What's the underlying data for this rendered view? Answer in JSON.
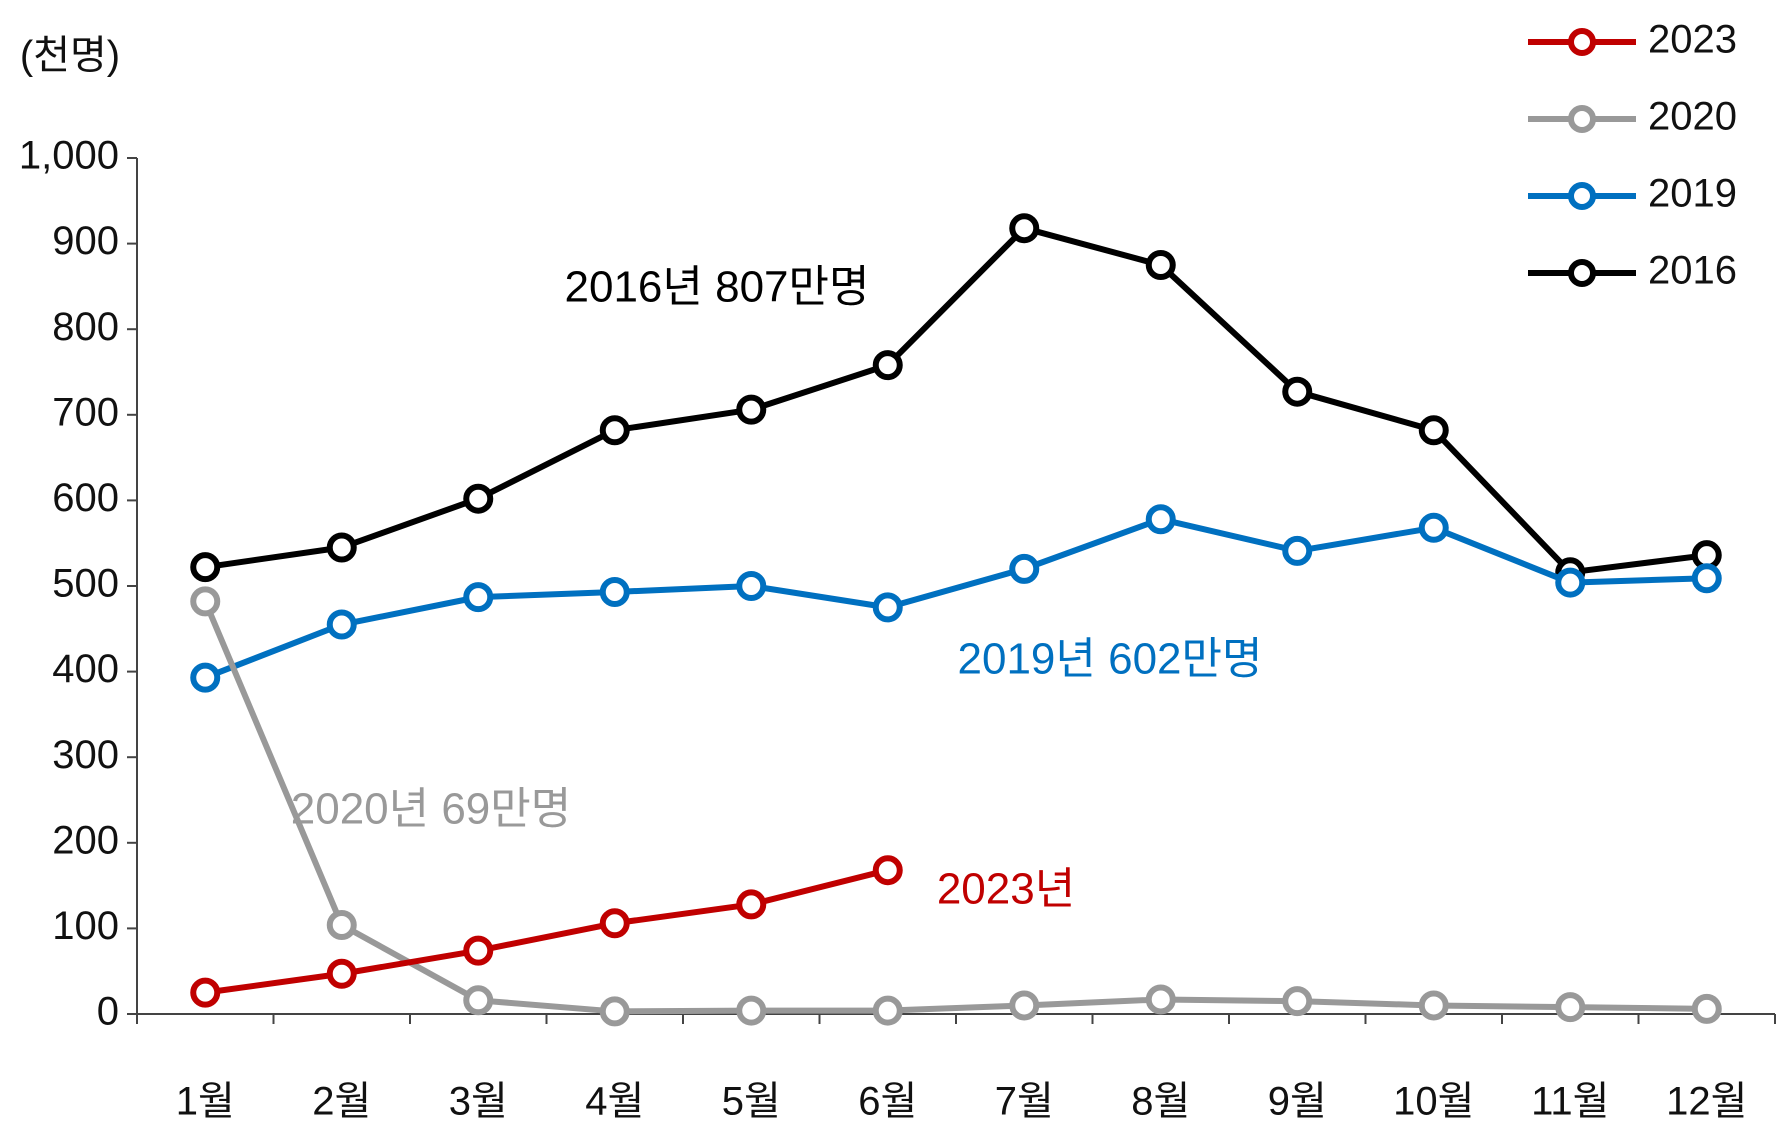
{
  "chart_data": {
    "type": "line",
    "y_label": "(천명)",
    "categories": [
      "1월",
      "2월",
      "3월",
      "4월",
      "5월",
      "6월",
      "7월",
      "8월",
      "9월",
      "10월",
      "11월",
      "12월"
    ],
    "series": [
      {
        "name": "2023",
        "color": "#c00000",
        "values": [
          25,
          47,
          74,
          106,
          128,
          168,
          null,
          null,
          null,
          null,
          null,
          null
        ]
      },
      {
        "name": "2020",
        "color": "#999999",
        "values": [
          482,
          104,
          16,
          3,
          4,
          4,
          10,
          17,
          15,
          10,
          8,
          6
        ]
      },
      {
        "name": "2019",
        "color": "#0070c0",
        "values": [
          393,
          455,
          487,
          493,
          500,
          475,
          520,
          578,
          541,
          568,
          504,
          509
        ]
      },
      {
        "name": "2016",
        "color": "#000000",
        "values": [
          522,
          545,
          602,
          682,
          706,
          758,
          918,
          875,
          727,
          682,
          516,
          536
        ]
      }
    ],
    "annotations": [
      {
        "text": "2016년 807만명",
        "color": "#000000"
      },
      {
        "text": "2019년 602만명",
        "color": "#0070c0"
      },
      {
        "text": "2020년 69만명",
        "color": "#999999"
      },
      {
        "text": "2023년",
        "color": "#c00000"
      }
    ],
    "ylim": [
      0,
      1000
    ],
    "yticks": [
      0,
      100,
      200,
      300,
      400,
      500,
      600,
      700,
      800,
      900,
      {
        "value": 1000,
        "label": "1,000"
      }
    ],
    "legend": "top-right",
    "grid": false
  }
}
